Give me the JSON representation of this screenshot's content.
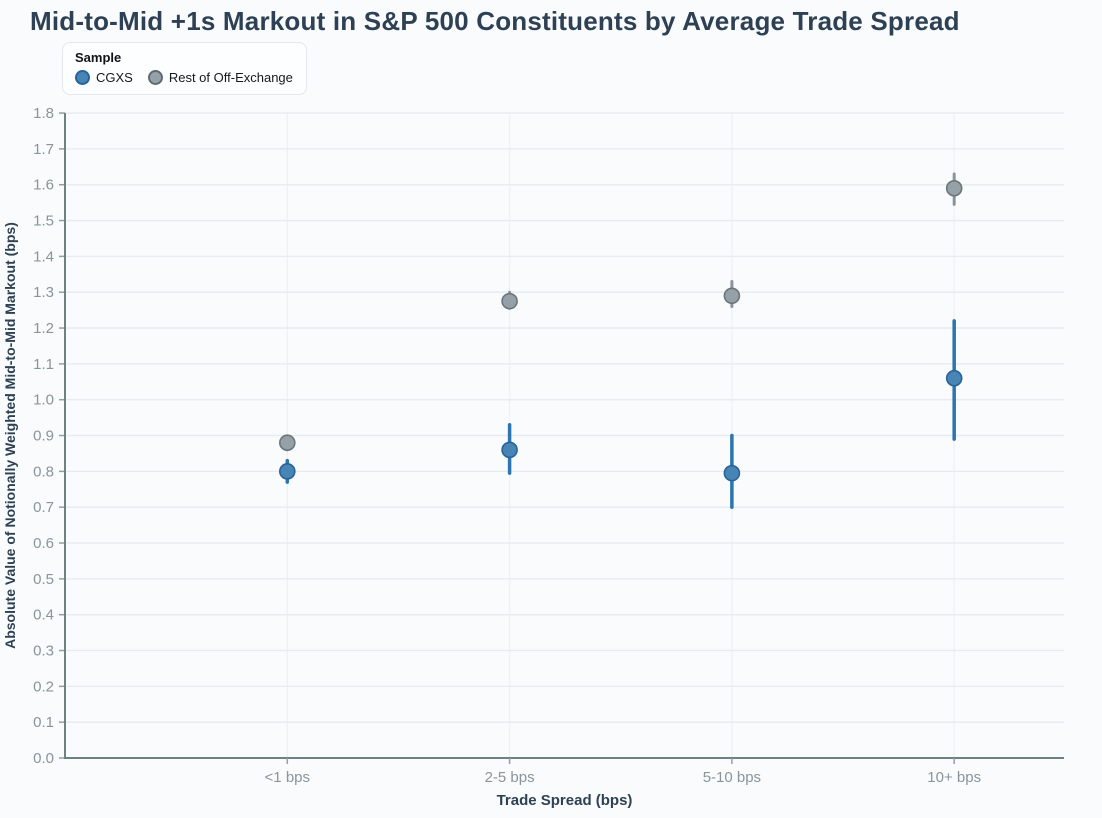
{
  "title": "Mid-to-Mid +1s Markout in S&P 500 Constituents by Average Trade Spread",
  "legend": {
    "title": "Sample",
    "items": [
      {
        "label": "CGXS",
        "fill": "#4884b4",
        "stroke": "#27629c"
      },
      {
        "label": "Rest of Off-Exchange",
        "fill": "#96a0a7",
        "stroke": "#5f6b72"
      }
    ]
  },
  "chart_data": {
    "type": "scatter",
    "subtype": "point-range",
    "title": "Mid-to-Mid +1s Markout in S&P 500 Constituents by Average Trade Spread",
    "xlabel": "Trade Spread (bps)",
    "ylabel": "Absolute Value of Notionally Weighted Mid-to-Mid Markout (bps)",
    "categories": [
      "<1 bps",
      "2-5 bps",
      "5-10 bps",
      "10+ bps"
    ],
    "series": [
      {
        "name": "CGXS",
        "values": [
          0.8,
          0.86,
          0.795,
          1.06
        ],
        "ci_low": [
          0.77,
          0.795,
          0.7,
          0.89
        ],
        "ci_high": [
          0.83,
          0.93,
          0.9,
          1.22
        ],
        "point_fill": "#4884b4",
        "point_stroke": "#27629c",
        "bar_color": "#2b76af"
      },
      {
        "name": "Rest of Off-Exchange",
        "values": [
          0.88,
          1.275,
          1.29,
          1.59
        ],
        "ci_low": [
          0.86,
          1.255,
          1.26,
          1.545
        ],
        "ci_high": [
          0.89,
          1.3,
          1.33,
          1.63
        ],
        "point_fill": "#96a0a7",
        "point_stroke": "#6b767c",
        "bar_color": "#89949b"
      }
    ],
    "ylim": [
      0.0,
      1.8
    ],
    "ytick_step": 0.1,
    "ytick_labels": [
      "0.0",
      "0.1",
      "0.2",
      "0.3",
      "0.4",
      "0.5",
      "0.6",
      "0.7",
      "0.8",
      "0.9",
      "1.0",
      "1.1",
      "1.2",
      "1.3",
      "1.4",
      "1.5",
      "1.6",
      "1.7",
      "1.8"
    ],
    "grid": true,
    "legend_position": "top-left",
    "colors": {
      "background": "#f9fbfc",
      "axis": "#6e8080",
      "grid_horizontal": "#e7ebee",
      "grid_vertical": "#eef1f4",
      "tick": "#93a0a2",
      "tick_label": "#8a949c",
      "title_text": "#2e4154"
    }
  }
}
